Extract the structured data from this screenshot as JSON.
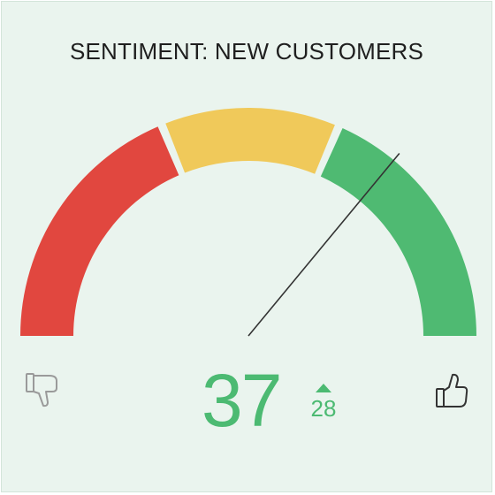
{
  "widget": {
    "title": "SENTIMENT: NEW CUSTOMERS",
    "value": "37",
    "delta": "28",
    "delta_direction": "up",
    "needle_level": 0.72,
    "segments": [
      {
        "name": "negative",
        "color": "#e1473f"
      },
      {
        "name": "neutral",
        "color": "#f0c95a"
      },
      {
        "name": "positive",
        "color": "#4fba72"
      }
    ],
    "icons": {
      "left": "thumbs-down-icon",
      "right": "thumbs-up-icon"
    },
    "accent_color": "#4cba72"
  }
}
